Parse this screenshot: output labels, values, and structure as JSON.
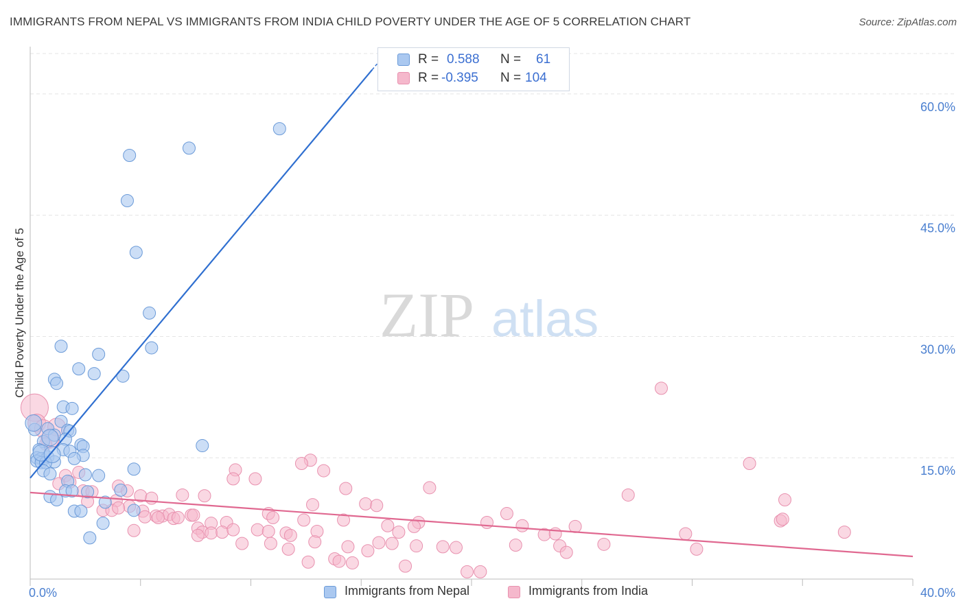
{
  "header": {
    "title": "IMMIGRANTS FROM NEPAL VS IMMIGRANTS FROM INDIA CHILD POVERTY UNDER THE AGE OF 5 CORRELATION CHART",
    "source": "Source: ZipAtlas.com"
  },
  "watermark": {
    "zip": "ZIP",
    "atlas": "atlas"
  },
  "legend_stats": {
    "nepal": {
      "r_label": "R =",
      "r_value": "0.588",
      "n_label": "N =",
      "n_value": "61"
    },
    "india": {
      "r_label": "R =",
      "r_value": "-0.395",
      "n_label": "N =",
      "n_value": "104"
    }
  },
  "colors": {
    "nepal_fill": "#aac8f0",
    "nepal_stroke": "#6a9ad8",
    "nepal_line": "#2f6fd0",
    "india_fill": "#f5b8cc",
    "india_stroke": "#e890ae",
    "india_line": "#e06890",
    "tick_text": "#4a7fd0",
    "grid": "#e4e4e4"
  },
  "chart_data": {
    "type": "scatter",
    "title": "IMMIGRANTS FROM NEPAL VS IMMIGRANTS FROM INDIA CHILD POVERTY UNDER THE AGE OF 5 CORRELATION CHART",
    "xlabel": "",
    "ylabel": "Child Poverty Under the Age of 5",
    "xlim": [
      0,
      40
    ],
    "ylim": [
      0,
      65
    ],
    "x_tick_labels": [
      "0.0%",
      "40.0%"
    ],
    "y_ticks": [
      15,
      30,
      45,
      60
    ],
    "y_tick_labels": [
      "15.0%",
      "30.0%",
      "45.0%",
      "60.0%"
    ],
    "legend": [
      "Immigrants from Nepal",
      "Immigrants from India"
    ],
    "series": [
      {
        "name": "Immigrants from Nepal",
        "r": 0.588,
        "n": 61,
        "trend": {
          "x": [
            0,
            15.5
          ],
          "y": [
            12.5,
            63.0
          ]
        },
        "points": [
          [
            11.3,
            55.7
          ],
          [
            7.2,
            53.3
          ],
          [
            4.5,
            52.4
          ],
          [
            4.4,
            46.8
          ],
          [
            4.8,
            40.4
          ],
          [
            5.4,
            32.9
          ],
          [
            5.5,
            28.6
          ],
          [
            1.4,
            28.8
          ],
          [
            3.1,
            27.8
          ],
          [
            2.2,
            26.0
          ],
          [
            2.9,
            25.4
          ],
          [
            4.2,
            25.1
          ],
          [
            1.1,
            24.7
          ],
          [
            1.2,
            24.2
          ],
          [
            1.5,
            21.3
          ],
          [
            1.9,
            21.1
          ],
          [
            0.2,
            18.5
          ],
          [
            1.4,
            19.5
          ],
          [
            0.8,
            18.6
          ],
          [
            1.7,
            18.4
          ],
          [
            1.8,
            18.3
          ],
          [
            1.1,
            17.8
          ],
          [
            0.6,
            17.0
          ],
          [
            1.6,
            17.3
          ],
          [
            2.3,
            16.6
          ],
          [
            2.4,
            16.4
          ],
          [
            7.8,
            16.5
          ],
          [
            0.4,
            16.0
          ],
          [
            1.5,
            16.0
          ],
          [
            1.8,
            15.8
          ],
          [
            2.4,
            15.3
          ],
          [
            0.3,
            15.0
          ],
          [
            0.5,
            14.9
          ],
          [
            0.8,
            15.1
          ],
          [
            0.3,
            14.6
          ],
          [
            0.5,
            14.4
          ],
          [
            1.1,
            14.5
          ],
          [
            2.0,
            14.9
          ],
          [
            0.7,
            14.4
          ],
          [
            0.6,
            13.4
          ],
          [
            4.7,
            13.6
          ],
          [
            2.5,
            12.9
          ],
          [
            3.1,
            12.8
          ],
          [
            1.7,
            12.1
          ],
          [
            4.1,
            11.0
          ],
          [
            1.6,
            10.9
          ],
          [
            1.9,
            10.9
          ],
          [
            0.9,
            10.2
          ],
          [
            1.2,
            9.8
          ],
          [
            2.0,
            8.4
          ],
          [
            2.3,
            8.4
          ],
          [
            4.7,
            8.5
          ],
          [
            3.3,
            6.9
          ],
          [
            2.7,
            5.1
          ],
          [
            0.15,
            19.3
          ],
          [
            0.9,
            17.5
          ],
          [
            0.5,
            15.6
          ],
          [
            1.0,
            15.4
          ],
          [
            0.9,
            13.0
          ],
          [
            2.6,
            10.8
          ],
          [
            3.4,
            9.5
          ]
        ]
      },
      {
        "name": "Immigrants from India",
        "r": -0.395,
        "n": 104,
        "trend": {
          "x": [
            0,
            40
          ],
          "y": [
            10.7,
            2.8
          ]
        },
        "points": [
          [
            0.2,
            21.2
          ],
          [
            0.3,
            19.3
          ],
          [
            0.6,
            18.6
          ],
          [
            1.2,
            18.8
          ],
          [
            0.9,
            17.3
          ],
          [
            0.7,
            16.7
          ],
          [
            12.7,
            14.7
          ],
          [
            12.3,
            14.3
          ],
          [
            9.3,
            13.5
          ],
          [
            13.3,
            13.4
          ],
          [
            9.2,
            12.4
          ],
          [
            10.2,
            12.4
          ],
          [
            1.6,
            12.8
          ],
          [
            2.2,
            13.2
          ],
          [
            1.3,
            11.8
          ],
          [
            1.8,
            12.0
          ],
          [
            4.0,
            11.5
          ],
          [
            2.4,
            10.9
          ],
          [
            2.8,
            10.8
          ],
          [
            4.4,
            10.9
          ],
          [
            5.0,
            10.3
          ],
          [
            3.9,
            9.7
          ],
          [
            2.6,
            9.6
          ],
          [
            6.9,
            10.4
          ],
          [
            7.9,
            10.3
          ],
          [
            5.5,
            10.0
          ],
          [
            14.3,
            11.2
          ],
          [
            18.1,
            11.3
          ],
          [
            12.8,
            9.2
          ],
          [
            15.2,
            9.3
          ],
          [
            15.7,
            9.1
          ],
          [
            3.3,
            8.5
          ],
          [
            3.7,
            8.5
          ],
          [
            4.5,
            9.0
          ],
          [
            4.0,
            8.8
          ],
          [
            5.1,
            8.4
          ],
          [
            5.7,
            7.8
          ],
          [
            6.0,
            7.8
          ],
          [
            6.3,
            8.0
          ],
          [
            6.5,
            7.5
          ],
          [
            6.7,
            7.6
          ],
          [
            7.3,
            7.9
          ],
          [
            7.4,
            7.9
          ],
          [
            5.2,
            7.7
          ],
          [
            8.2,
            6.9
          ],
          [
            8.9,
            7.0
          ],
          [
            10.8,
            8.1
          ],
          [
            11.0,
            7.6
          ],
          [
            12.4,
            7.3
          ],
          [
            14.2,
            7.3
          ],
          [
            17.6,
            7.0
          ],
          [
            20.7,
            7.0
          ],
          [
            21.6,
            8.1
          ],
          [
            4.7,
            6.0
          ],
          [
            7.6,
            6.3
          ],
          [
            7.8,
            5.8
          ],
          [
            8.2,
            5.7
          ],
          [
            8.7,
            5.8
          ],
          [
            9.2,
            6.1
          ],
          [
            10.3,
            6.1
          ],
          [
            10.8,
            5.9
          ],
          [
            11.6,
            5.7
          ],
          [
            11.8,
            5.4
          ],
          [
            13.0,
            5.9
          ],
          [
            16.2,
            6.6
          ],
          [
            16.7,
            5.8
          ],
          [
            17.4,
            6.5
          ],
          [
            22.3,
            6.6
          ],
          [
            23.3,
            5.5
          ],
          [
            23.8,
            5.6
          ],
          [
            24.7,
            6.5
          ],
          [
            7.6,
            5.4
          ],
          [
            9.6,
            4.4
          ],
          [
            10.9,
            4.4
          ],
          [
            12.9,
            4.6
          ],
          [
            14.4,
            4.0
          ],
          [
            15.3,
            3.5
          ],
          [
            15.8,
            4.5
          ],
          [
            16.4,
            4.4
          ],
          [
            17.5,
            4.1
          ],
          [
            18.7,
            4.0
          ],
          [
            19.3,
            3.9
          ],
          [
            22.0,
            4.2
          ],
          [
            24.0,
            4.1
          ],
          [
            24.3,
            3.3
          ],
          [
            11.7,
            3.7
          ],
          [
            13.8,
            2.5
          ],
          [
            14.0,
            2.2
          ],
          [
            14.6,
            2.0
          ],
          [
            12.6,
            2.1
          ],
          [
            17.0,
            1.6
          ],
          [
            19.8,
            0.9
          ],
          [
            20.4,
            0.9
          ],
          [
            27.1,
            10.4
          ],
          [
            28.6,
            23.6
          ],
          [
            34.2,
            9.8
          ],
          [
            34.0,
            7.2
          ],
          [
            34.1,
            7.4
          ],
          [
            29.7,
            5.6
          ],
          [
            30.2,
            3.7
          ],
          [
            36.9,
            5.8
          ],
          [
            26.0,
            4.3
          ],
          [
            32.6,
            14.3
          ],
          [
            5.8,
            7.6
          ]
        ]
      }
    ]
  },
  "bottom_legend": {
    "nepal": "Immigrants from Nepal",
    "india": "Immigrants from India"
  }
}
